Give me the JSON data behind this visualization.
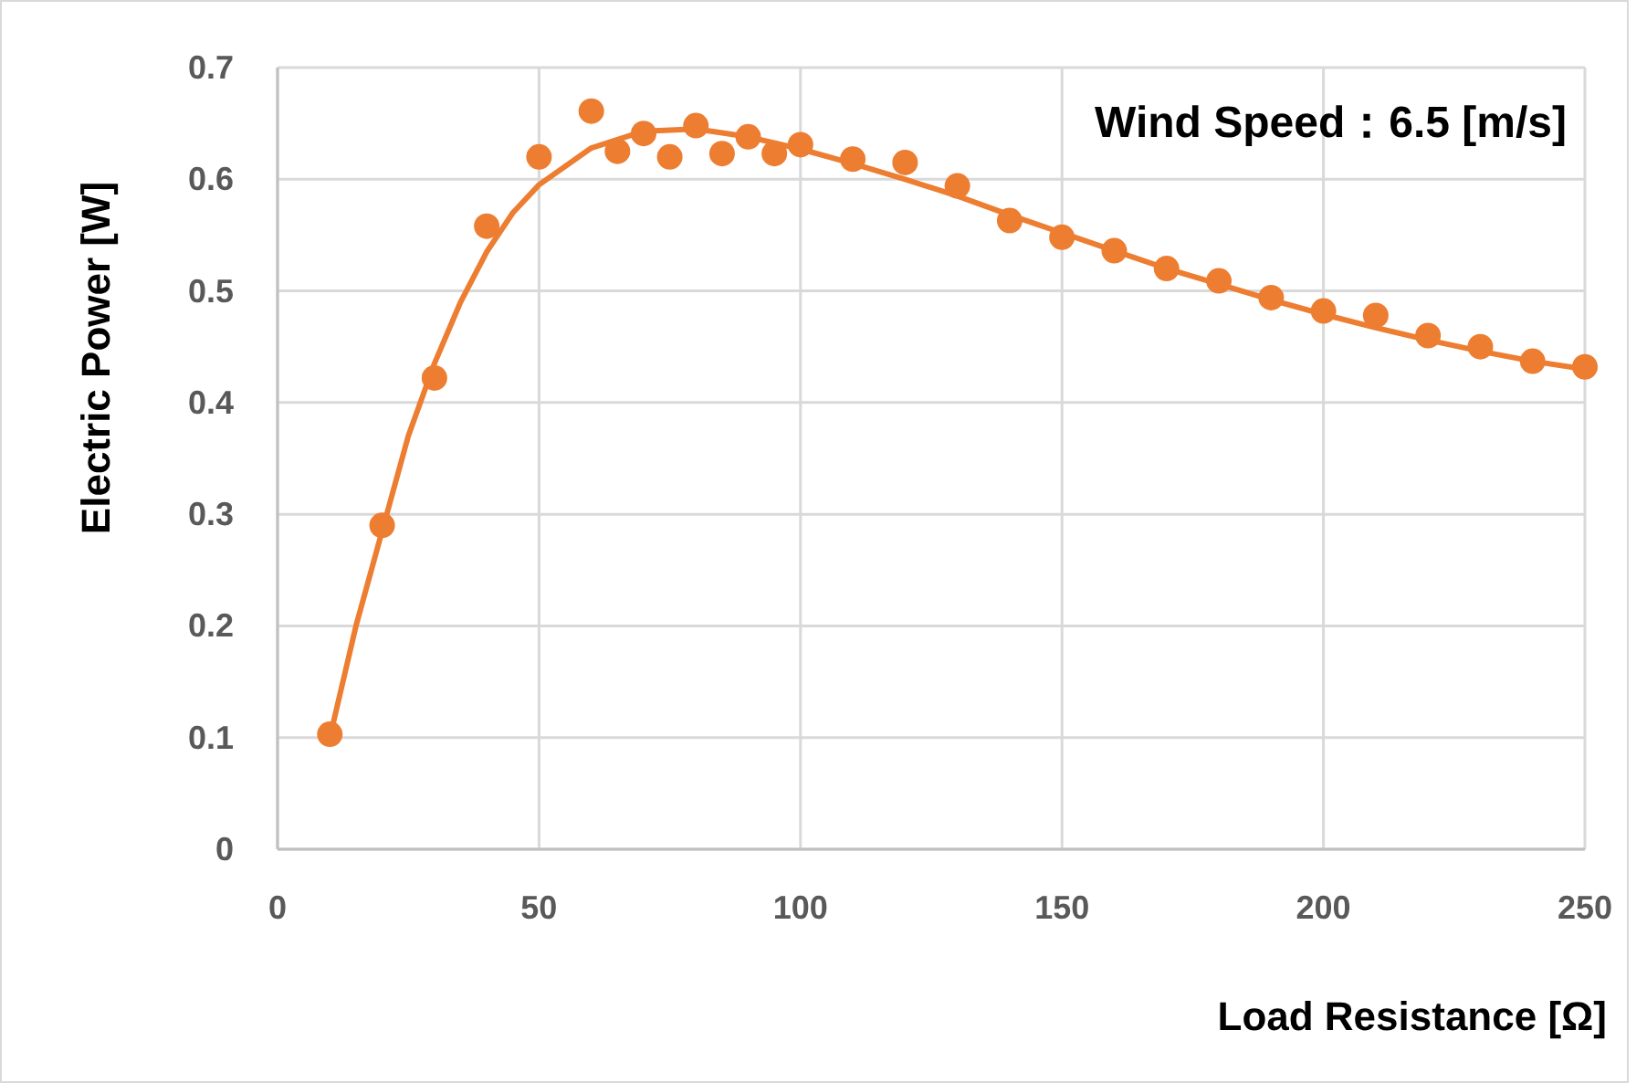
{
  "chart_data": {
    "type": "scatter",
    "xlabel": "Load Resistance [Ω]",
    "ylabel": "Electric Power [W]",
    "annotations": [
      "Wind Speed：6.5 [m/s]"
    ],
    "xlim": [
      0,
      250
    ],
    "xticks": [
      0,
      50,
      100,
      150,
      200,
      250
    ],
    "ylim": [
      0,
      0.7
    ],
    "yticks": [
      {
        "value": 0,
        "label": "0"
      },
      0.1,
      0.2,
      0.3,
      0.4,
      0.5,
      0.6,
      0.7
    ],
    "grid": true,
    "series": [
      {
        "marker": "circle",
        "color": "#ed7d31",
        "x": [
          10,
          20,
          30,
          40,
          50,
          60,
          65,
          70,
          75,
          80,
          85,
          90,
          95,
          100,
          110,
          120,
          130,
          140,
          150,
          160,
          170,
          180,
          190,
          200,
          210,
          220,
          230,
          240,
          250
        ],
        "values": [
          0.103,
          0.29,
          0.422,
          0.558,
          0.62,
          0.661,
          0.625,
          0.641,
          0.62,
          0.648,
          0.623,
          0.638,
          0.623,
          0.631,
          0.618,
          0.615,
          0.594,
          0.563,
          0.548,
          0.536,
          0.52,
          0.509,
          0.494,
          0.482,
          0.478,
          0.46,
          0.45,
          0.437,
          0.432
        ]
      },
      {
        "type": "line",
        "color": "#ed7d31",
        "line_style": "solid",
        "x": [
          10,
          15,
          20,
          25,
          30,
          35,
          40,
          45,
          50,
          60,
          70,
          80,
          90,
          100,
          110,
          120,
          130,
          140,
          150,
          160,
          170,
          180,
          190,
          200,
          210,
          220,
          230,
          240,
          250
        ],
        "values": [
          0.1,
          0.2,
          0.285,
          0.37,
          0.435,
          0.49,
          0.535,
          0.57,
          0.595,
          0.628,
          0.643,
          0.645,
          0.638,
          0.627,
          0.614,
          0.6,
          0.585,
          0.568,
          0.552,
          0.536,
          0.52,
          0.506,
          0.492,
          0.479,
          0.467,
          0.456,
          0.446,
          0.437,
          0.43
        ]
      }
    ]
  }
}
